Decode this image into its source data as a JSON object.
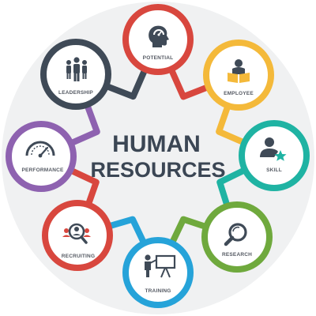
{
  "title": {
    "line1": "HUMAN",
    "line2": "RESOURCES"
  },
  "nodes": [
    {
      "label": "POTENTIAL",
      "icon": "head-gauge-icon",
      "color": "#d8473e"
    },
    {
      "label": "EMPLOYEE",
      "icon": "employee-icon",
      "color": "#f4b93a"
    },
    {
      "label": "SKILL",
      "icon": "person-star-icon",
      "color": "#1fb3a3"
    },
    {
      "label": "RESEARCH",
      "icon": "magnifier-icon",
      "color": "#6fa93d"
    },
    {
      "label": "TRAINING",
      "icon": "presentation-icon",
      "color": "#26a3d9"
    },
    {
      "label": "RECRUITING",
      "icon": "recruiting-icon",
      "color": "#d8473e"
    },
    {
      "label": "PERFORMANCE",
      "icon": "speedometer-icon",
      "color": "#8e62b0"
    },
    {
      "label": "LEADERSHIP",
      "icon": "group-icon",
      "color": "#3f4a57"
    }
  ],
  "colors": {
    "icon": "#3f4a57",
    "background_disc": "#f0f1f2"
  }
}
